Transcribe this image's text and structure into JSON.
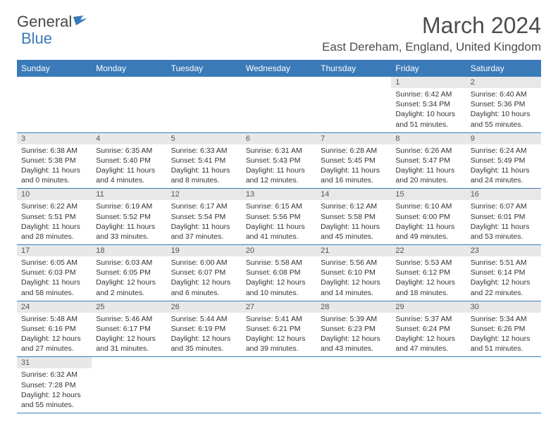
{
  "logo": {
    "general": "General",
    "blue": "Blue"
  },
  "title": "March 2024",
  "location": "East Dereham, England, United Kingdom",
  "colors": {
    "header_bg": "#3a7ab8",
    "header_text": "#ffffff",
    "daynum_bg": "#e8e8e8",
    "border": "#3a7ab8",
    "logo_gray": "#45484b",
    "logo_blue": "#3a7ab8"
  },
  "typography": {
    "title_fontsize": 32,
    "location_fontsize": 17,
    "dayheader_fontsize": 12,
    "detail_fontsize": 10.5
  },
  "dayNames": [
    "Sunday",
    "Monday",
    "Tuesday",
    "Wednesday",
    "Thursday",
    "Friday",
    "Saturday"
  ],
  "weeks": [
    [
      {
        "n": "",
        "sr": "",
        "ss": "",
        "dl": "",
        "empty": true
      },
      {
        "n": "",
        "sr": "",
        "ss": "",
        "dl": "",
        "empty": true
      },
      {
        "n": "",
        "sr": "",
        "ss": "",
        "dl": "",
        "empty": true
      },
      {
        "n": "",
        "sr": "",
        "ss": "",
        "dl": "",
        "empty": true
      },
      {
        "n": "",
        "sr": "",
        "ss": "",
        "dl": "",
        "empty": true
      },
      {
        "n": "1",
        "sr": "Sunrise: 6:42 AM",
        "ss": "Sunset: 5:34 PM",
        "dl": "Daylight: 10 hours and 51 minutes."
      },
      {
        "n": "2",
        "sr": "Sunrise: 6:40 AM",
        "ss": "Sunset: 5:36 PM",
        "dl": "Daylight: 10 hours and 55 minutes."
      }
    ],
    [
      {
        "n": "3",
        "sr": "Sunrise: 6:38 AM",
        "ss": "Sunset: 5:38 PM",
        "dl": "Daylight: 11 hours and 0 minutes."
      },
      {
        "n": "4",
        "sr": "Sunrise: 6:35 AM",
        "ss": "Sunset: 5:40 PM",
        "dl": "Daylight: 11 hours and 4 minutes."
      },
      {
        "n": "5",
        "sr": "Sunrise: 6:33 AM",
        "ss": "Sunset: 5:41 PM",
        "dl": "Daylight: 11 hours and 8 minutes."
      },
      {
        "n": "6",
        "sr": "Sunrise: 6:31 AM",
        "ss": "Sunset: 5:43 PM",
        "dl": "Daylight: 11 hours and 12 minutes."
      },
      {
        "n": "7",
        "sr": "Sunrise: 6:28 AM",
        "ss": "Sunset: 5:45 PM",
        "dl": "Daylight: 11 hours and 16 minutes."
      },
      {
        "n": "8",
        "sr": "Sunrise: 6:26 AM",
        "ss": "Sunset: 5:47 PM",
        "dl": "Daylight: 11 hours and 20 minutes."
      },
      {
        "n": "9",
        "sr": "Sunrise: 6:24 AM",
        "ss": "Sunset: 5:49 PM",
        "dl": "Daylight: 11 hours and 24 minutes."
      }
    ],
    [
      {
        "n": "10",
        "sr": "Sunrise: 6:22 AM",
        "ss": "Sunset: 5:51 PM",
        "dl": "Daylight: 11 hours and 28 minutes."
      },
      {
        "n": "11",
        "sr": "Sunrise: 6:19 AM",
        "ss": "Sunset: 5:52 PM",
        "dl": "Daylight: 11 hours and 33 minutes."
      },
      {
        "n": "12",
        "sr": "Sunrise: 6:17 AM",
        "ss": "Sunset: 5:54 PM",
        "dl": "Daylight: 11 hours and 37 minutes."
      },
      {
        "n": "13",
        "sr": "Sunrise: 6:15 AM",
        "ss": "Sunset: 5:56 PM",
        "dl": "Daylight: 11 hours and 41 minutes."
      },
      {
        "n": "14",
        "sr": "Sunrise: 6:12 AM",
        "ss": "Sunset: 5:58 PM",
        "dl": "Daylight: 11 hours and 45 minutes."
      },
      {
        "n": "15",
        "sr": "Sunrise: 6:10 AM",
        "ss": "Sunset: 6:00 PM",
        "dl": "Daylight: 11 hours and 49 minutes."
      },
      {
        "n": "16",
        "sr": "Sunrise: 6:07 AM",
        "ss": "Sunset: 6:01 PM",
        "dl": "Daylight: 11 hours and 53 minutes."
      }
    ],
    [
      {
        "n": "17",
        "sr": "Sunrise: 6:05 AM",
        "ss": "Sunset: 6:03 PM",
        "dl": "Daylight: 11 hours and 58 minutes."
      },
      {
        "n": "18",
        "sr": "Sunrise: 6:03 AM",
        "ss": "Sunset: 6:05 PM",
        "dl": "Daylight: 12 hours and 2 minutes."
      },
      {
        "n": "19",
        "sr": "Sunrise: 6:00 AM",
        "ss": "Sunset: 6:07 PM",
        "dl": "Daylight: 12 hours and 6 minutes."
      },
      {
        "n": "20",
        "sr": "Sunrise: 5:58 AM",
        "ss": "Sunset: 6:08 PM",
        "dl": "Daylight: 12 hours and 10 minutes."
      },
      {
        "n": "21",
        "sr": "Sunrise: 5:56 AM",
        "ss": "Sunset: 6:10 PM",
        "dl": "Daylight: 12 hours and 14 minutes."
      },
      {
        "n": "22",
        "sr": "Sunrise: 5:53 AM",
        "ss": "Sunset: 6:12 PM",
        "dl": "Daylight: 12 hours and 18 minutes."
      },
      {
        "n": "23",
        "sr": "Sunrise: 5:51 AM",
        "ss": "Sunset: 6:14 PM",
        "dl": "Daylight: 12 hours and 22 minutes."
      }
    ],
    [
      {
        "n": "24",
        "sr": "Sunrise: 5:48 AM",
        "ss": "Sunset: 6:16 PM",
        "dl": "Daylight: 12 hours and 27 minutes."
      },
      {
        "n": "25",
        "sr": "Sunrise: 5:46 AM",
        "ss": "Sunset: 6:17 PM",
        "dl": "Daylight: 12 hours and 31 minutes."
      },
      {
        "n": "26",
        "sr": "Sunrise: 5:44 AM",
        "ss": "Sunset: 6:19 PM",
        "dl": "Daylight: 12 hours and 35 minutes."
      },
      {
        "n": "27",
        "sr": "Sunrise: 5:41 AM",
        "ss": "Sunset: 6:21 PM",
        "dl": "Daylight: 12 hours and 39 minutes."
      },
      {
        "n": "28",
        "sr": "Sunrise: 5:39 AM",
        "ss": "Sunset: 6:23 PM",
        "dl": "Daylight: 12 hours and 43 minutes."
      },
      {
        "n": "29",
        "sr": "Sunrise: 5:37 AM",
        "ss": "Sunset: 6:24 PM",
        "dl": "Daylight: 12 hours and 47 minutes."
      },
      {
        "n": "30",
        "sr": "Sunrise: 5:34 AM",
        "ss": "Sunset: 6:26 PM",
        "dl": "Daylight: 12 hours and 51 minutes."
      }
    ],
    [
      {
        "n": "31",
        "sr": "Sunrise: 6:32 AM",
        "ss": "Sunset: 7:28 PM",
        "dl": "Daylight: 12 hours and 55 minutes."
      },
      {
        "n": "",
        "sr": "",
        "ss": "",
        "dl": "",
        "empty": true
      },
      {
        "n": "",
        "sr": "",
        "ss": "",
        "dl": "",
        "empty": true
      },
      {
        "n": "",
        "sr": "",
        "ss": "",
        "dl": "",
        "empty": true
      },
      {
        "n": "",
        "sr": "",
        "ss": "",
        "dl": "",
        "empty": true
      },
      {
        "n": "",
        "sr": "",
        "ss": "",
        "dl": "",
        "empty": true
      },
      {
        "n": "",
        "sr": "",
        "ss": "",
        "dl": "",
        "empty": true
      }
    ]
  ]
}
